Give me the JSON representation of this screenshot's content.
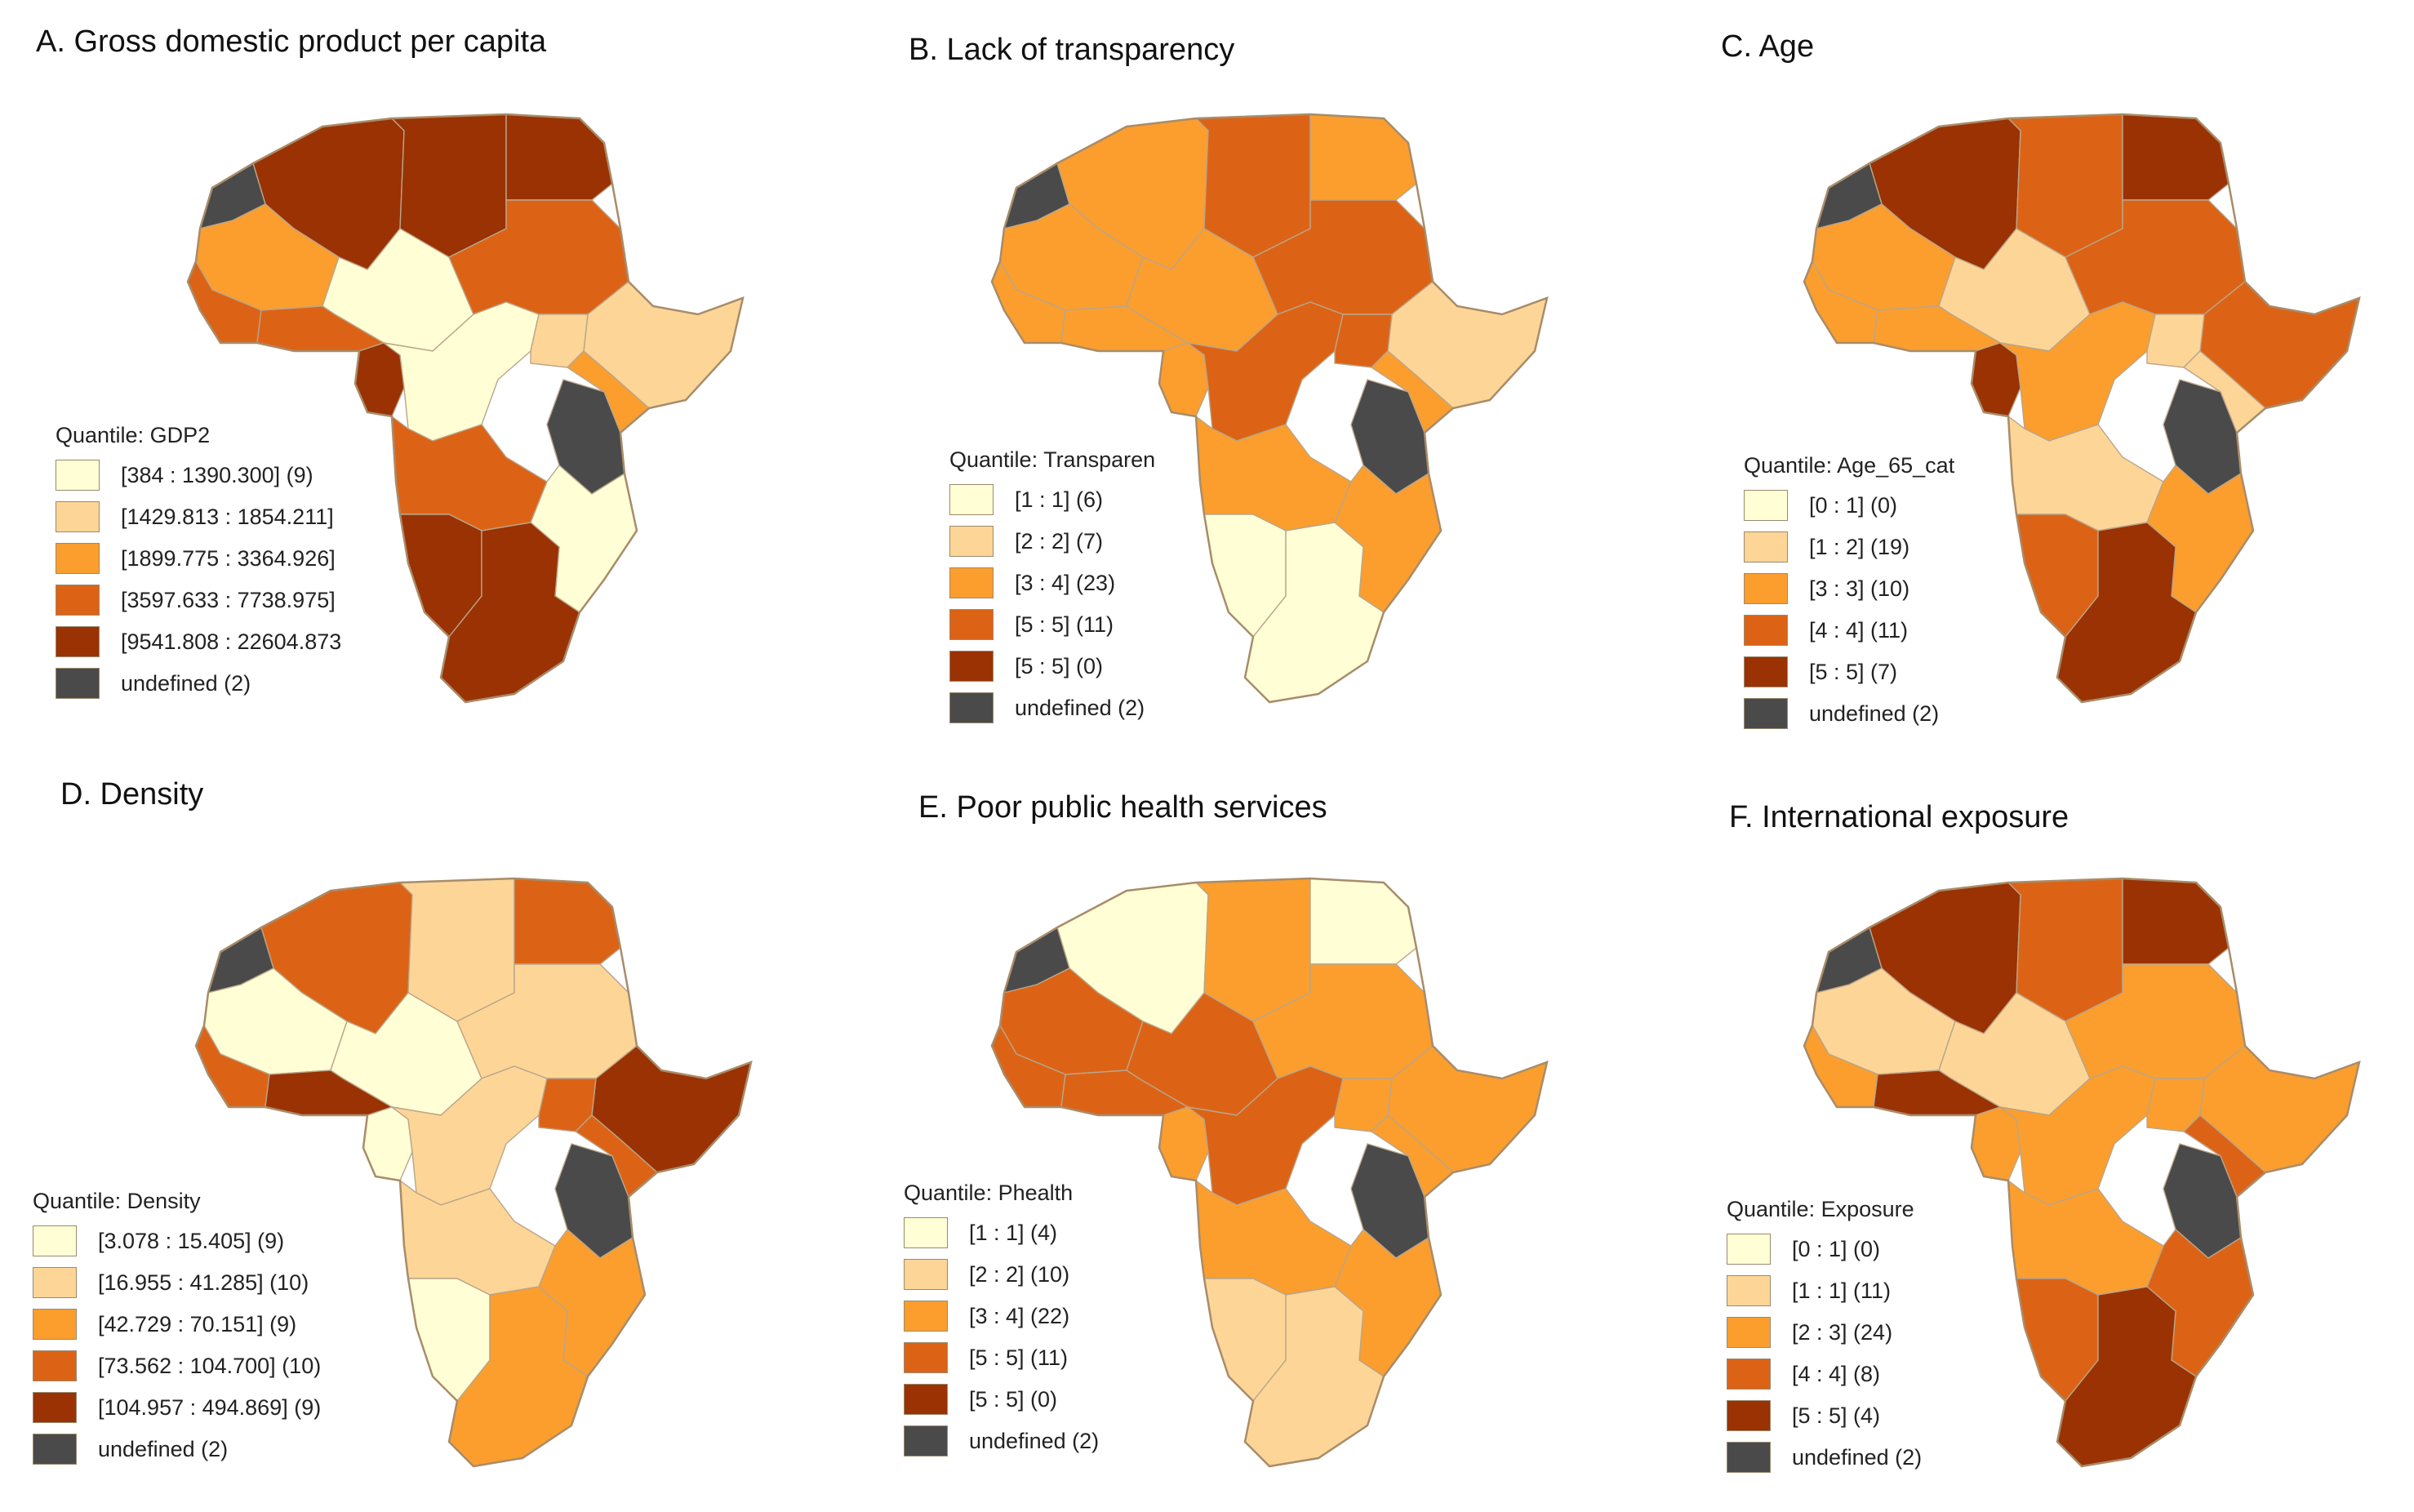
{
  "palette": {
    "q1": "#fffed5",
    "q2": "#fdd597",
    "q3": "#fb9e2e",
    "q4": "#dc6316",
    "q5": "#9a3203",
    "undefined": "#4a4a4a",
    "border": "#b9a58a"
  },
  "panels": [
    {
      "id": "A",
      "title": "A. Gross domestic product per capita",
      "legend_title": "Quantile: GDP2",
      "items": [
        {
          "label": "[384 : 1390.300] (9)",
          "cls": "q1"
        },
        {
          "label": "[1429.813 : 1854.211]",
          "cls": "q2"
        },
        {
          "label": "[1899.775 : 3364.926]",
          "cls": "q3"
        },
        {
          "label": "[3597.633 : 7738.975]",
          "cls": "q4"
        },
        {
          "label": "[9541.808 : 22604.873",
          "cls": "q5"
        },
        {
          "label": "undefined (2)",
          "cls": "undefined"
        }
      ],
      "regions": {
        "northwest": "q5",
        "north-central": "q5",
        "northeast": "q5",
        "sahel-west": "q3",
        "sahel-central": "q1",
        "sahel-east": "q4",
        "west-coast": "q4",
        "gulf": "q4",
        "horn": "q2",
        "central-west": "q5",
        "central": "q1",
        "great-lakes": "q2",
        "east": "q3",
        "angola-zambia": "q4",
        "mozambique-malawi": "q1",
        "south-west": "q5",
        "south": "q5",
        "western-sahara": "undefined",
        "tanzania": "undefined"
      }
    },
    {
      "id": "B",
      "title": "B. Lack of transparency",
      "legend_title": "Quantile: Transparen",
      "items": [
        {
          "label": "[1 : 1] (6)",
          "cls": "q1"
        },
        {
          "label": "[2 : 2] (7)",
          "cls": "q2"
        },
        {
          "label": "[3 : 4] (23)",
          "cls": "q3"
        },
        {
          "label": "[5 : 5] (11)",
          "cls": "q4"
        },
        {
          "label": "[5 : 5] (0)",
          "cls": "q5"
        },
        {
          "label": "undefined (2)",
          "cls": "undefined"
        }
      ],
      "regions": {
        "northwest": "q3",
        "north-central": "q4",
        "northeast": "q3",
        "sahel-west": "q3",
        "sahel-central": "q3",
        "sahel-east": "q4",
        "west-coast": "q3",
        "gulf": "q3",
        "horn": "q2",
        "central-west": "q3",
        "central": "q4",
        "great-lakes": "q4",
        "east": "q3",
        "angola-zambia": "q3",
        "mozambique-malawi": "q3",
        "south-west": "q1",
        "south": "q1",
        "western-sahara": "undefined",
        "tanzania": "undefined"
      }
    },
    {
      "id": "C",
      "title": "C. Age",
      "legend_title": "Quantile: Age_65_cat",
      "items": [
        {
          "label": "[0 : 1] (0)",
          "cls": "q1"
        },
        {
          "label": "[1 : 2] (19)",
          "cls": "q2"
        },
        {
          "label": "[3 : 3] (10)",
          "cls": "q3"
        },
        {
          "label": "[4 : 4] (11)",
          "cls": "q4"
        },
        {
          "label": "[5 : 5] (7)",
          "cls": "q5"
        },
        {
          "label": "undefined (2)",
          "cls": "undefined"
        }
      ],
      "regions": {
        "northwest": "q5",
        "north-central": "q4",
        "northeast": "q5",
        "sahel-west": "q3",
        "sahel-central": "q2",
        "sahel-east": "q4",
        "west-coast": "q3",
        "gulf": "q3",
        "horn": "q4",
        "central-west": "q5",
        "central": "q3",
        "great-lakes": "q2",
        "east": "q2",
        "angola-zambia": "q2",
        "mozambique-malawi": "q3",
        "south-west": "q4",
        "south": "q5",
        "western-sahara": "undefined",
        "tanzania": "undefined"
      }
    },
    {
      "id": "D",
      "title": "D. Density",
      "legend_title": "Quantile: Density",
      "items": [
        {
          "label": "[3.078 : 15.405] (9)",
          "cls": "q1"
        },
        {
          "label": "[16.955 : 41.285] (10)",
          "cls": "q2"
        },
        {
          "label": "[42.729 : 70.151] (9)",
          "cls": "q3"
        },
        {
          "label": "[73.562 : 104.700] (10)",
          "cls": "q4"
        },
        {
          "label": "[104.957 : 494.869] (9)",
          "cls": "q5"
        },
        {
          "label": "undefined (2)",
          "cls": "undefined"
        }
      ],
      "regions": {
        "northwest": "q4",
        "north-central": "q2",
        "northeast": "q4",
        "sahel-west": "q1",
        "sahel-central": "q1",
        "sahel-east": "q2",
        "west-coast": "q4",
        "gulf": "q5",
        "horn": "q5",
        "central-west": "q1",
        "central": "q2",
        "great-lakes": "q4",
        "east": "q4",
        "angola-zambia": "q2",
        "mozambique-malawi": "q3",
        "south-west": "q1",
        "south": "q3",
        "western-sahara": "undefined",
        "tanzania": "undefined"
      }
    },
    {
      "id": "E",
      "title": "E. Poor public health services",
      "legend_title": "Quantile: Phealth",
      "items": [
        {
          "label": "[1 : 1] (4)",
          "cls": "q1"
        },
        {
          "label": "[2 : 2] (10)",
          "cls": "q2"
        },
        {
          "label": "[3 : 4] (22)",
          "cls": "q3"
        },
        {
          "label": "[5 : 5] (11)",
          "cls": "q4"
        },
        {
          "label": "[5 : 5] (0)",
          "cls": "q5"
        },
        {
          "label": "undefined (2)",
          "cls": "undefined"
        }
      ],
      "regions": {
        "northwest": "q1",
        "north-central": "q3",
        "northeast": "q1",
        "sahel-west": "q4",
        "sahel-central": "q4",
        "sahel-east": "q3",
        "west-coast": "q4",
        "gulf": "q4",
        "horn": "q3",
        "central-west": "q3",
        "central": "q4",
        "great-lakes": "q3",
        "east": "q3",
        "angola-zambia": "q3",
        "mozambique-malawi": "q3",
        "south-west": "q2",
        "south": "q2",
        "western-sahara": "undefined",
        "tanzania": "undefined"
      }
    },
    {
      "id": "F",
      "title": "F. International exposure",
      "legend_title": "Quantile: Exposure",
      "items": [
        {
          "label": "[0 : 1] (0)",
          "cls": "q1"
        },
        {
          "label": "[1 : 1] (11)",
          "cls": "q2"
        },
        {
          "label": "[2 : 3] (24)",
          "cls": "q3"
        },
        {
          "label": "[4 : 4] (8)",
          "cls": "q4"
        },
        {
          "label": "[5 : 5] (4)",
          "cls": "q5"
        },
        {
          "label": "undefined (2)",
          "cls": "undefined"
        }
      ],
      "regions": {
        "northwest": "q5",
        "north-central": "q4",
        "northeast": "q5",
        "sahel-west": "q2",
        "sahel-central": "q2",
        "sahel-east": "q3",
        "west-coast": "q3",
        "gulf": "q5",
        "horn": "q3",
        "central-west": "q3",
        "central": "q3",
        "great-lakes": "q3",
        "east": "q4",
        "angola-zambia": "q3",
        "mozambique-malawi": "q4",
        "south-west": "q4",
        "south": "q5",
        "western-sahara": "undefined",
        "tanzania": "undefined"
      }
    }
  ]
}
